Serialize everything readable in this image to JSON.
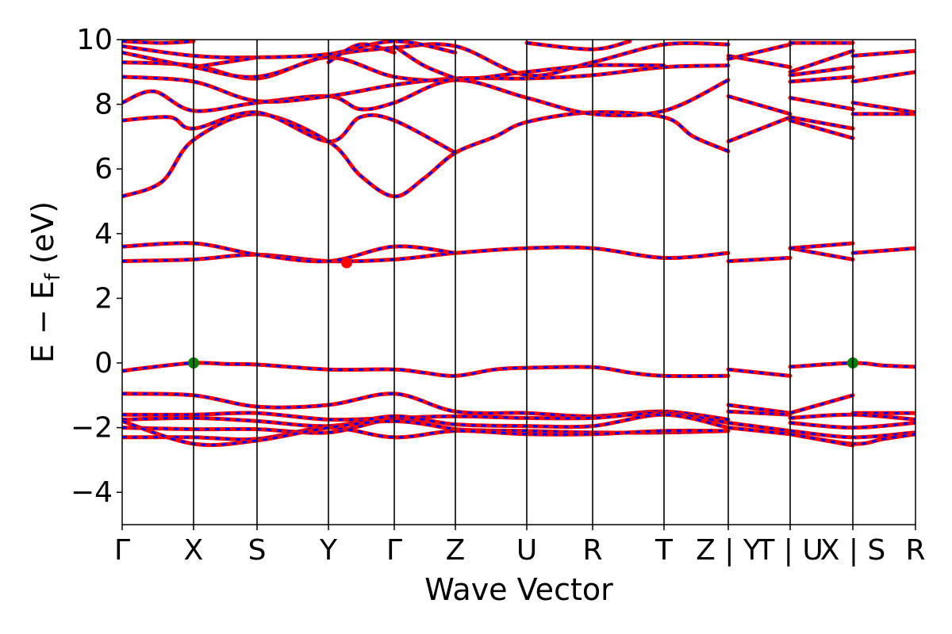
{
  "chart_data": {
    "type": "line",
    "xlabel": "Wave Vector",
    "ylabel": "E − E_f (eV)",
    "ylabel_parts": {
      "main": "E − E",
      "sub": "f",
      "unit": " (eV)"
    },
    "ylim": [
      -5,
      10
    ],
    "yticks": [
      -4,
      -2,
      0,
      2,
      4,
      6,
      8,
      10
    ],
    "ytick_labels": [
      "−4",
      "−2",
      "0",
      "2",
      "4",
      "6",
      "8",
      "10"
    ],
    "kpath": [
      {
        "label": "Γ",
        "x": 0.0
      },
      {
        "label": "X",
        "x": 0.09
      },
      {
        "label": "S",
        "x": 0.17
      },
      {
        "label": "Y",
        "x": 0.26
      },
      {
        "label": "Γ",
        "x": 0.343
      },
      {
        "label": "Z",
        "x": 0.42
      },
      {
        "label": "U",
        "x": 0.51
      },
      {
        "label": "R",
        "x": 0.593
      },
      {
        "label": "T",
        "x": 0.683
      },
      {
        "label": "Z | Y",
        "x": 0.764
      },
      {
        "label": "T | U",
        "x": 0.842
      },
      {
        "label": "X | S",
        "x": 0.921
      },
      {
        "label": "R",
        "x": 1.0
      }
    ],
    "grid": false,
    "legend": "none",
    "colors": {
      "band_solid": "#ff0000",
      "band_dash": "#0000ff",
      "vbm": "#008000",
      "cbm": "#ff0000"
    },
    "markers": [
      {
        "name": "VBM",
        "x": 0.09,
        "y": 0.0,
        "color": "#008000"
      },
      {
        "name": "VBM",
        "x": 0.921,
        "y": 0.0,
        "color": "#008000"
      },
      {
        "name": "CBM",
        "x": 0.283,
        "y": 3.1,
        "color": "#ff0000"
      }
    ],
    "series": [
      {
        "points": [
          [
            0,
            -0.25
          ],
          [
            0.03,
            -0.15
          ],
          [
            0.09,
            0.0
          ],
          [
            0.13,
            -0.03
          ],
          [
            0.17,
            -0.05
          ],
          [
            0.26,
            -0.2
          ],
          [
            0.343,
            -0.2
          ],
          [
            0.38,
            -0.3
          ],
          [
            0.42,
            -0.4
          ],
          [
            0.47,
            -0.2
          ],
          [
            0.51,
            -0.15
          ],
          [
            0.593,
            -0.13
          ],
          [
            0.64,
            -0.3
          ],
          [
            0.683,
            -0.4
          ],
          [
            0.764,
            -0.4
          ]
        ],
        "breaks": []
      },
      {
        "points": [
          [
            0.764,
            -0.2
          ],
          [
            0.842,
            -0.4
          ]
        ]
      },
      {
        "points": [
          [
            0.842,
            -0.12
          ],
          [
            0.921,
            0.0
          ],
          [
            0.96,
            -0.08
          ],
          [
            1.0,
            -0.12
          ]
        ]
      },
      {
        "points": [
          [
            0,
            -0.95
          ],
          [
            0.09,
            -1.0
          ],
          [
            0.17,
            -1.35
          ],
          [
            0.26,
            -1.3
          ],
          [
            0.343,
            -0.95
          ],
          [
            0.42,
            -1.5
          ],
          [
            0.51,
            -1.55
          ],
          [
            0.593,
            -1.65
          ],
          [
            0.683,
            -1.5
          ],
          [
            0.764,
            -1.75
          ]
        ]
      },
      {
        "points": [
          [
            0.764,
            -1.3
          ],
          [
            0.842,
            -1.55
          ]
        ]
      },
      {
        "points": [
          [
            0.842,
            -1.55
          ],
          [
            0.921,
            -1.0
          ]
        ]
      },
      {
        "points": [
          [
            0.921,
            -1.55
          ],
          [
            1.0,
            -1.55
          ]
        ]
      },
      {
        "points": [
          [
            0,
            -1.6
          ],
          [
            0.09,
            -1.6
          ],
          [
            0.17,
            -1.55
          ],
          [
            0.26,
            -1.75
          ],
          [
            0.343,
            -1.7
          ],
          [
            0.42,
            -1.65
          ],
          [
            0.51,
            -1.7
          ],
          [
            0.593,
            -1.7
          ],
          [
            0.683,
            -1.55
          ],
          [
            0.764,
            -1.85
          ]
        ]
      },
      {
        "points": [
          [
            0.764,
            -1.5
          ],
          [
            0.842,
            -1.6
          ]
        ]
      },
      {
        "points": [
          [
            0.842,
            -1.7
          ],
          [
            0.921,
            -1.6
          ],
          [
            1.0,
            -1.75
          ]
        ]
      },
      {
        "points": [
          [
            0,
            -1.75
          ],
          [
            0.09,
            -1.7
          ],
          [
            0.17,
            -1.8
          ],
          [
            0.26,
            -1.95
          ],
          [
            0.343,
            -1.65
          ],
          [
            0.42,
            -1.9
          ],
          [
            0.51,
            -1.95
          ],
          [
            0.593,
            -1.95
          ],
          [
            0.683,
            -1.6
          ],
          [
            0.764,
            -2.0
          ]
        ]
      },
      {
        "points": [
          [
            0.764,
            -1.85
          ],
          [
            0.842,
            -2.1
          ]
        ]
      },
      {
        "points": [
          [
            0.842,
            -1.85
          ],
          [
            0.921,
            -2.0
          ],
          [
            1.0,
            -1.85
          ]
        ]
      },
      {
        "points": [
          [
            0,
            -2.0
          ],
          [
            0.09,
            -2.05
          ],
          [
            0.17,
            -2.05
          ],
          [
            0.26,
            -2.15
          ],
          [
            0.343,
            -1.75
          ],
          [
            0.42,
            -2.05
          ],
          [
            0.51,
            -2.1
          ],
          [
            0.593,
            -2.15
          ],
          [
            0.683,
            -2.15
          ],
          [
            0.764,
            -2.1
          ]
        ]
      },
      {
        "points": [
          [
            0.764,
            -2.0
          ],
          [
            0.842,
            -2.2
          ]
        ]
      },
      {
        "points": [
          [
            0.842,
            -2.1
          ],
          [
            0.921,
            -2.3
          ],
          [
            1.0,
            -2.15
          ]
        ]
      },
      {
        "points": [
          [
            0,
            -2.3
          ],
          [
            0.09,
            -2.3
          ],
          [
            0.17,
            -2.35
          ],
          [
            0.26,
            -2.0
          ],
          [
            0.343,
            -2.3
          ],
          [
            0.42,
            -2.1
          ],
          [
            0.51,
            -2.2
          ],
          [
            0.593,
            -2.2
          ],
          [
            0.683,
            -2.1
          ],
          [
            0.764,
            -2.1
          ]
        ]
      },
      {
        "points": [
          [
            0.842,
            -2.2
          ],
          [
            0.921,
            -2.5
          ],
          [
            0.96,
            -2.35
          ],
          [
            1.0,
            -2.2
          ]
        ]
      },
      {
        "points": [
          [
            0,
            -1.8
          ],
          [
            0.09,
            -2.5
          ],
          [
            0.17,
            -2.4
          ],
          [
            0.26,
            -2.0
          ],
          [
            0.343,
            -1.8
          ],
          [
            0.42,
            -2.05
          ]
        ]
      },
      {
        "points": [
          [
            0.842,
            -2.2
          ],
          [
            0.921,
            -2.55
          ]
        ]
      },
      {
        "points": [
          [
            0,
            3.15
          ],
          [
            0.09,
            3.2
          ],
          [
            0.17,
            3.35
          ],
          [
            0.26,
            3.15
          ],
          [
            0.343,
            3.2
          ],
          [
            0.42,
            3.4
          ],
          [
            0.51,
            3.55
          ],
          [
            0.593,
            3.55
          ],
          [
            0.683,
            3.25
          ],
          [
            0.764,
            3.4
          ]
        ]
      },
      {
        "points": [
          [
            0.764,
            3.15
          ],
          [
            0.842,
            3.25
          ]
        ]
      },
      {
        "points": [
          [
            0.842,
            3.55
          ],
          [
            0.921,
            3.2
          ]
        ]
      },
      {
        "points": [
          [
            0.921,
            3.4
          ],
          [
            1.0,
            3.55
          ]
        ]
      },
      {
        "points": [
          [
            0,
            3.6
          ],
          [
            0.09,
            3.7
          ],
          [
            0.17,
            3.35
          ],
          [
            0.26,
            3.15
          ],
          [
            0.343,
            3.6
          ],
          [
            0.42,
            3.4
          ]
        ]
      },
      {
        "points": [
          [
            0.842,
            3.55
          ],
          [
            0.921,
            3.7
          ]
        ]
      },
      {
        "points": [
          [
            0,
            5.15
          ],
          [
            0.05,
            5.6
          ],
          [
            0.09,
            6.9
          ],
          [
            0.17,
            7.7
          ],
          [
            0.26,
            6.85
          ],
          [
            0.3,
            5.8
          ],
          [
            0.343,
            5.15
          ],
          [
            0.38,
            5.7
          ],
          [
            0.42,
            6.5
          ],
          [
            0.47,
            7.0
          ],
          [
            0.51,
            7.45
          ],
          [
            0.593,
            7.75
          ],
          [
            0.683,
            7.6
          ],
          [
            0.72,
            7.0
          ],
          [
            0.764,
            6.55
          ]
        ]
      },
      {
        "points": [
          [
            0.764,
            6.85
          ],
          [
            0.842,
            7.6
          ]
        ]
      },
      {
        "points": [
          [
            0.842,
            7.5
          ],
          [
            0.921,
            6.95
          ]
        ]
      },
      {
        "points": [
          [
            0.921,
            7.7
          ],
          [
            1.0,
            7.7
          ]
        ]
      },
      {
        "points": [
          [
            0,
            7.5
          ],
          [
            0.06,
            7.6
          ],
          [
            0.09,
            7.25
          ],
          [
            0.17,
            7.75
          ],
          [
            0.26,
            6.85
          ],
          [
            0.3,
            7.6
          ],
          [
            0.343,
            7.5
          ],
          [
            0.42,
            6.5
          ]
        ]
      },
      {
        "points": [
          [
            0.842,
            7.6
          ],
          [
            0.921,
            7.25
          ]
        ]
      },
      {
        "points": [
          [
            0,
            8.05
          ],
          [
            0.04,
            8.4
          ],
          [
            0.09,
            7.8
          ],
          [
            0.17,
            8.05
          ],
          [
            0.26,
            8.25
          ],
          [
            0.3,
            7.85
          ],
          [
            0.343,
            8.05
          ],
          [
            0.42,
            8.75
          ],
          [
            0.51,
            8.2
          ],
          [
            0.593,
            7.7
          ],
          [
            0.683,
            7.8
          ],
          [
            0.764,
            8.75
          ]
        ]
      },
      {
        "points": [
          [
            0.764,
            8.25
          ],
          [
            0.842,
            7.7
          ]
        ]
      },
      {
        "points": [
          [
            0.842,
            8.2
          ],
          [
            0.921,
            7.85
          ]
        ]
      },
      {
        "points": [
          [
            0.921,
            8.05
          ],
          [
            1.0,
            7.75
          ]
        ]
      },
      {
        "points": [
          [
            0,
            8.85
          ],
          [
            0.09,
            8.7
          ],
          [
            0.17,
            8.1
          ],
          [
            0.26,
            8.25
          ],
          [
            0.343,
            8.6
          ],
          [
            0.42,
            8.8
          ],
          [
            0.51,
            8.8
          ],
          [
            0.593,
            8.9
          ],
          [
            0.683,
            9.15
          ],
          [
            0.764,
            9.2
          ]
        ]
      },
      {
        "points": [
          [
            0.764,
            9.5
          ],
          [
            0.842,
            9.15
          ]
        ]
      },
      {
        "points": [
          [
            0.842,
            8.7
          ],
          [
            0.921,
            8.85
          ]
        ]
      },
      {
        "points": [
          [
            0.921,
            8.7
          ],
          [
            1.0,
            9.0
          ]
        ]
      },
      {
        "points": [
          [
            0,
            9.3
          ],
          [
            0.09,
            9.2
          ],
          [
            0.17,
            8.8
          ],
          [
            0.26,
            9.45
          ],
          [
            0.343,
            8.85
          ],
          [
            0.42,
            8.75
          ],
          [
            0.51,
            9.0
          ],
          [
            0.593,
            9.2
          ],
          [
            0.683,
            9.2
          ]
        ]
      },
      {
        "points": [
          [
            0.842,
            8.9
          ],
          [
            0.921,
            9.15
          ]
        ]
      },
      {
        "points": [
          [
            0,
            9.6
          ],
          [
            0.09,
            9.15
          ],
          [
            0.17,
            8.85
          ],
          [
            0.26,
            9.5
          ],
          [
            0.343,
            9.75
          ],
          [
            0.42,
            9.8
          ],
          [
            0.51,
            8.9
          ],
          [
            0.593,
            9.3
          ],
          [
            0.683,
            9.85
          ],
          [
            0.764,
            9.85
          ]
        ]
      },
      {
        "points": [
          [
            0.764,
            9.4
          ],
          [
            0.842,
            9.85
          ]
        ]
      },
      {
        "points": [
          [
            0.842,
            9.0
          ],
          [
            0.921,
            9.65
          ]
        ]
      },
      {
        "points": [
          [
            0.921,
            9.5
          ],
          [
            1.0,
            9.65
          ]
        ]
      },
      {
        "points": [
          [
            0,
            9.8
          ],
          [
            0.09,
            9.5
          ],
          [
            0.17,
            9.45
          ],
          [
            0.26,
            9.55
          ],
          [
            0.343,
            9.95
          ],
          [
            0.42,
            9.6
          ]
        ]
      },
      {
        "points": [
          [
            0.842,
            9.9
          ],
          [
            0.921,
            9.9
          ]
        ]
      },
      {
        "points": [
          [
            0.343,
            9.8
          ],
          [
            0.38,
            9.2
          ],
          [
            0.42,
            8.8
          ]
        ]
      },
      {
        "points": [
          [
            0.26,
            9.3
          ],
          [
            0.3,
            9.85
          ],
          [
            0.343,
            9.6
          ]
        ]
      },
      {
        "points": [
          [
            0.51,
            9.9
          ],
          [
            0.593,
            9.7
          ],
          [
            0.64,
            9.95
          ]
        ]
      },
      {
        "points": [
          [
            0,
            9.95
          ],
          [
            0.05,
            9.9
          ],
          [
            0.09,
            9.95
          ]
        ]
      },
      {
        "points": [
          [
            0.09,
            9.15
          ],
          [
            0.13,
            9.3
          ],
          [
            0.17,
            9.45
          ]
        ]
      }
    ]
  }
}
